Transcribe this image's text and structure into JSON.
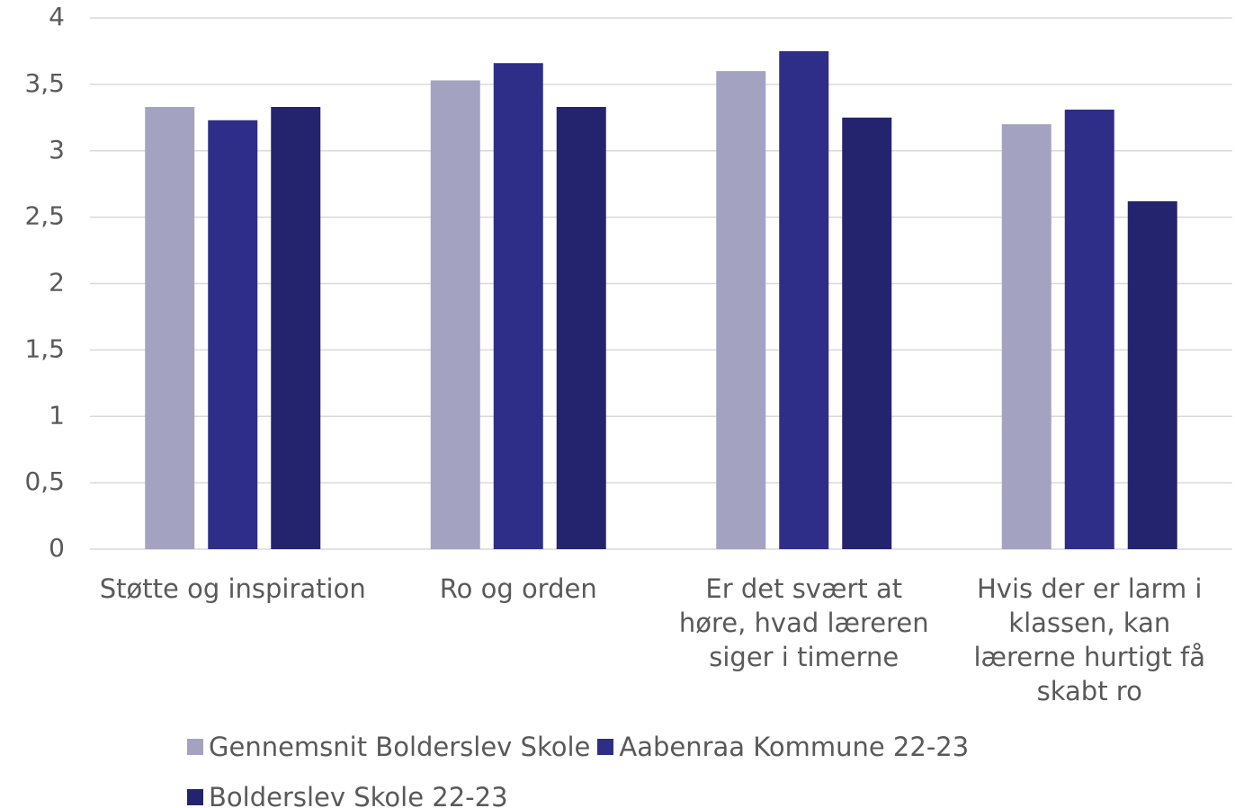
{
  "chart_data": {
    "type": "bar",
    "categories": [
      "Støtte og inspiration",
      "Ro og orden",
      "Er det svært at høre, hvad læreren siger i timerne",
      "Hvis der er larm i klassen, kan lærerne hurtigt få skabt ro"
    ],
    "series": [
      {
        "name": "Gennemsnit Bolderslev Skole",
        "color": "#a3a3c1",
        "values": [
          3.33,
          3.53,
          3.6,
          3.2
        ]
      },
      {
        "name": "Aabenraa Kommune 22-23",
        "color": "#2e2e88",
        "values": [
          3.23,
          3.66,
          3.75,
          3.31
        ]
      },
      {
        "name": "Bolderslev Skole 22-23",
        "color": "#24246e",
        "values": [
          3.33,
          3.33,
          3.25,
          2.62
        ]
      }
    ],
    "ylim": [
      0,
      4
    ],
    "yticks": [
      0,
      {
        "value": 0.5,
        "label": "0,5"
      },
      1,
      {
        "value": 1.5,
        "label": "1,5"
      },
      2,
      {
        "value": 2.5,
        "label": "2,5"
      },
      3,
      {
        "value": 3.5,
        "label": "3,5"
      },
      4
    ],
    "grid": true,
    "legend": "bottom"
  }
}
